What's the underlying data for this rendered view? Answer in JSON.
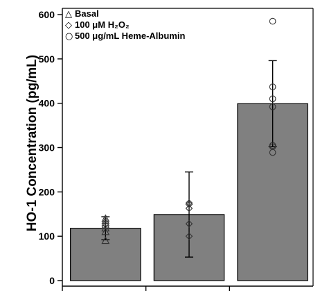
{
  "chart_data": {
    "type": "bar",
    "ylabel": "HO-1 Concentration (pg/mL)",
    "ylim": [
      0,
      600
    ],
    "yticks": [
      0,
      100,
      200,
      300,
      400,
      500,
      600
    ],
    "categories": [
      "Basal",
      "100 μM H₂O₂",
      "500 μg/mL Heme-Albumin"
    ],
    "values": [
      118,
      149,
      399
    ],
    "errors": [
      26,
      96,
      97
    ],
    "points": [
      [
        90,
        110,
        118,
        125,
        130,
        135,
        140
      ],
      [
        100,
        128,
        163,
        172,
        175
      ],
      [
        289,
        302,
        305,
        392,
        410,
        437,
        585
      ]
    ],
    "point_markers": [
      "triangle",
      "diamond",
      "circle"
    ],
    "legend": [
      {
        "marker": "△",
        "label": "Basal"
      },
      {
        "marker": "◇",
        "label": "100 μM H₂O₂"
      },
      {
        "marker": "○",
        "label": "500 μg/mL Heme-Albumin"
      }
    ],
    "legend_position": "top-left",
    "bar_color": "#808080",
    "grid": false
  }
}
